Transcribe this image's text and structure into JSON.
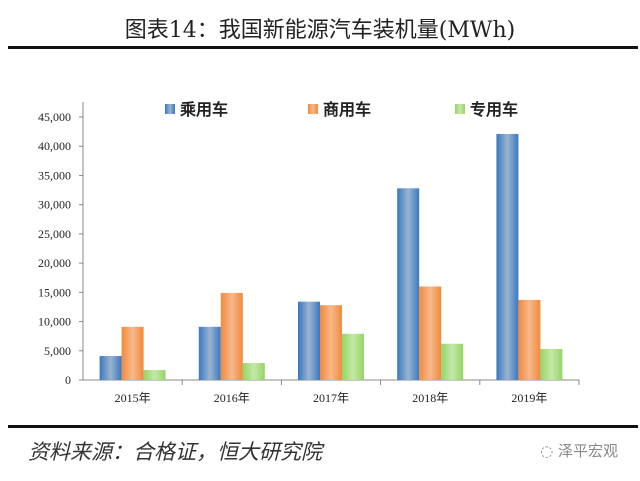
{
  "title": "图表14：我国新能源汽车装机量(MWh)",
  "source": "资料来源：合格证，恒大研究院",
  "watermark": "泽平宏观",
  "chart_data": {
    "type": "bar",
    "title": "图表14：我国新能源汽车装机量(MWh)",
    "categories": [
      "2015年",
      "2016年",
      "2017年",
      "2018年",
      "2019年"
    ],
    "series": [
      {
        "name": "乘用车",
        "color": "#3a78c0",
        "values": [
          4100,
          9100,
          13400,
          32800,
          42100
        ]
      },
      {
        "name": "商用车",
        "color": "#f08a3c",
        "values": [
          9100,
          14900,
          12800,
          16000,
          13700
        ]
      },
      {
        "name": "专用车",
        "color": "#96d467",
        "values": [
          1700,
          2900,
          7900,
          6200,
          5300
        ]
      }
    ],
    "yticks": [
      "0",
      "5,000",
      "10,000",
      "15,000",
      "20,000",
      "25,000",
      "30,000",
      "35,000",
      "40,000",
      "45,000"
    ],
    "ylim": [
      0,
      45000
    ],
    "xlabel": "",
    "ylabel": "",
    "legend": "top"
  }
}
